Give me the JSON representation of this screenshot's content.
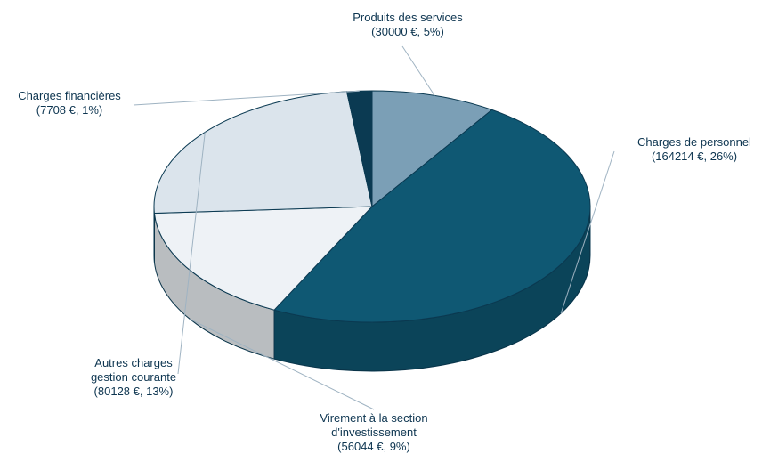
{
  "chart_data": {
    "type": "pie3d",
    "categories": [
      "Produits des services",
      "Charges de personnel",
      "Virement à la section d'investissement",
      "Autres charges gestion courante",
      "Charges financières"
    ],
    "values": [
      5,
      26,
      9,
      13,
      1
    ],
    "amounts": [
      30000,
      164214,
      56044,
      80128,
      7708
    ],
    "value_labels": [
      "(30000 €, 5%)",
      "(164214 €, 26%)",
      "(56044 €, 9%)",
      "(80128 €, 13%)",
      "(7708 €, 1%)"
    ],
    "colors": [
      "#7b9fb6",
      "#0f5873",
      "#eef2f6",
      "#dbe4ec",
      "#0b3a52"
    ]
  }
}
